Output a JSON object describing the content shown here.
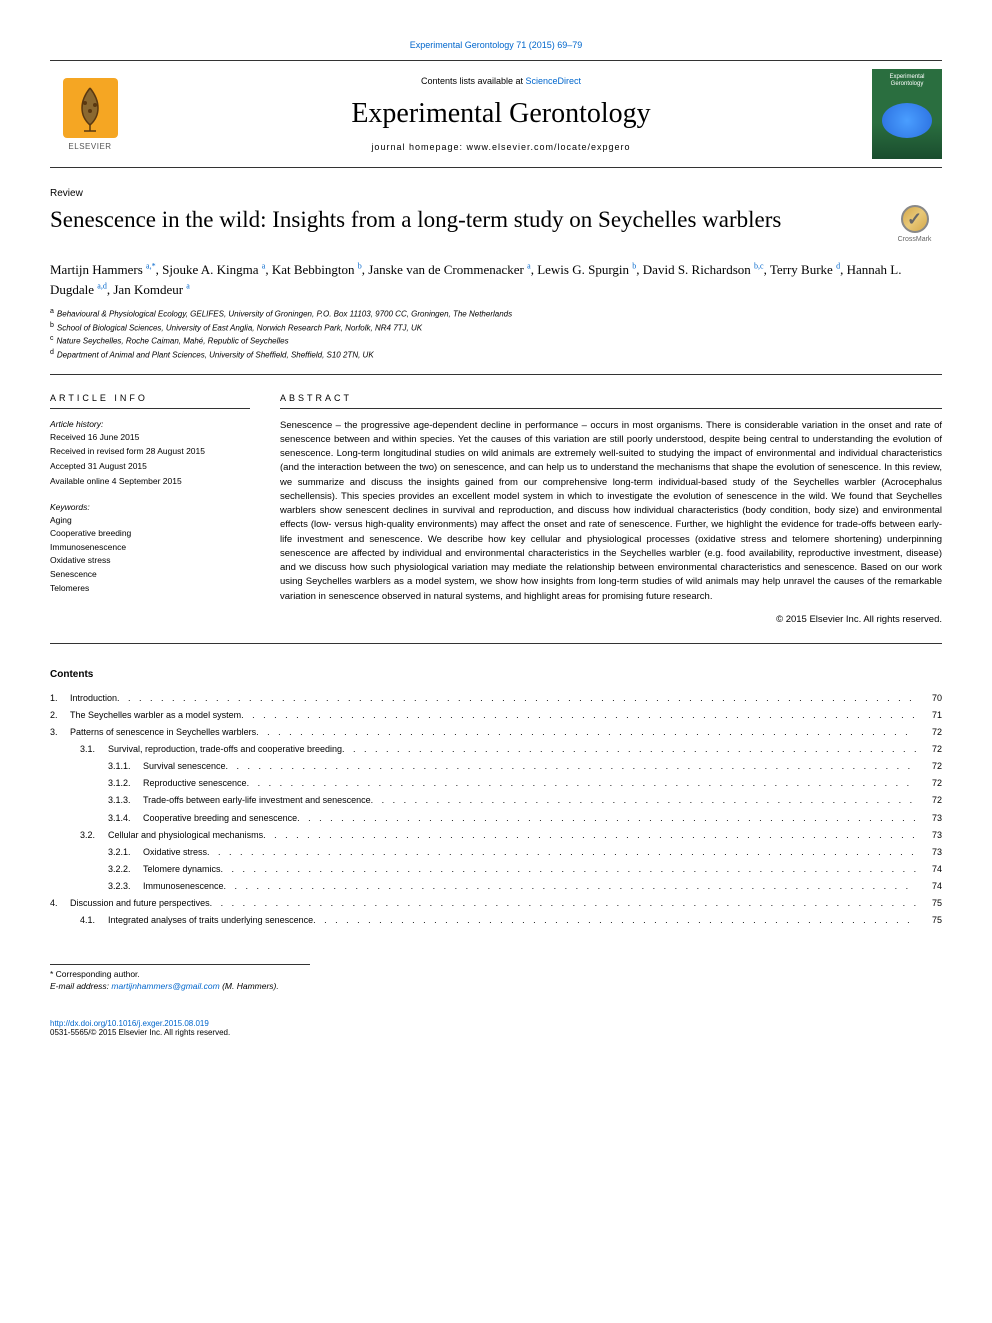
{
  "header": {
    "top_link": "Experimental Gerontology 71 (2015) 69–79",
    "contents_line_pre": "Contents lists available at ",
    "contents_line_link": "ScienceDirect",
    "journal_name": "Experimental Gerontology",
    "homepage_label": "journal homepage: www.elsevier.com/locate/expgero",
    "elsevier": "ELSEVIER",
    "cover_title": "Experimental Gerontology"
  },
  "article": {
    "type": "Review",
    "title": "Senescence in the wild: Insights from a long-term study on Seychelles warblers",
    "crossmark": "CrossMark"
  },
  "authors": {
    "a1": {
      "name": "Martijn Hammers ",
      "sup": "a,*"
    },
    "a2": {
      "name": ", Sjouke A. Kingma ",
      "sup": "a"
    },
    "a3": {
      "name": ", Kat Bebbington ",
      "sup": "b"
    },
    "a4": {
      "name": ", Janske van de Crommenacker ",
      "sup": "a"
    },
    "a5": {
      "name": ", Lewis G. Spurgin ",
      "sup": "b"
    },
    "a6": {
      "name": ", David S. Richardson ",
      "sup": "b,c"
    },
    "a7": {
      "name": ", Terry Burke ",
      "sup": "d"
    },
    "a8": {
      "name": ", Hannah L. Dugdale ",
      "sup": "a,d"
    },
    "a9": {
      "name": ", Jan Komdeur ",
      "sup": "a"
    }
  },
  "affiliations": {
    "a": "Behavioural & Physiological Ecology, GELIFES, University of Groningen, P.O. Box 11103, 9700 CC, Groningen, The Netherlands",
    "b": "School of Biological Sciences, University of East Anglia, Norwich Research Park, Norfolk, NR4 7TJ, UK",
    "c": "Nature Seychelles, Roche Caiman, Mahé, Republic of Seychelles",
    "d": "Department of Animal and Plant Sciences, University of Sheffield, Sheffield, S10 2TN, UK"
  },
  "info": {
    "heading": "article info",
    "history_label": "Article history:",
    "received": "Received 16 June 2015",
    "revised": "Received in revised form 28 August 2015",
    "accepted": "Accepted 31 August 2015",
    "online": "Available online 4 September 2015",
    "keywords_label": "Keywords:",
    "keywords": [
      "Aging",
      "Cooperative breeding",
      "Immunosenescence",
      "Oxidative stress",
      "Senescence",
      "Telomeres"
    ]
  },
  "abstract": {
    "heading": "abstract",
    "text": "Senescence – the progressive age-dependent decline in performance – occurs in most organisms. There is considerable variation in the onset and rate of senescence between and within species. Yet the causes of this variation are still poorly understood, despite being central to understanding the evolution of senescence. Long-term longitudinal studies on wild animals are extremely well-suited to studying the impact of environmental and individual characteristics (and the interaction between the two) on senescence, and can help us to understand the mechanisms that shape the evolution of senescence. In this review, we summarize and discuss the insights gained from our comprehensive long-term individual-based study of the Seychelles warbler (Acrocephalus sechellensis). This species provides an excellent model system in which to investigate the evolution of senescence in the wild. We found that Seychelles warblers show senescent declines in survival and reproduction, and discuss how individual characteristics (body condition, body size) and environmental effects (low- versus high-quality environments) may affect the onset and rate of senescence. Further, we highlight the evidence for trade-offs between early-life investment and senescence. We describe how key cellular and physiological processes (oxidative stress and telomere shortening) underpinning senescence are affected by individual and environmental characteristics in the Seychelles warbler (e.g. food availability, reproductive investment, disease) and we discuss how such physiological variation may mediate the relationship between environmental characteristics and senescence. Based on our work using Seychelles warblers as a model system, we show how insights from long-term studies of wild animals may help unravel the causes of the remarkable variation in senescence observed in natural systems, and highlight areas for promising future research.",
    "copyright": "© 2015 Elsevier Inc. All rights reserved."
  },
  "contents_heading": "Contents",
  "toc": [
    {
      "num": "1.",
      "label": "Introduction",
      "page": "70",
      "level": 0
    },
    {
      "num": "2.",
      "label": "The Seychelles warbler as a model system",
      "page": "71",
      "level": 0
    },
    {
      "num": "3.",
      "label": "Patterns of senescence in Seychelles warblers",
      "page": "72",
      "level": 0
    },
    {
      "num": "3.1.",
      "label": "Survival, reproduction, trade-offs and cooperative breeding",
      "page": "72",
      "level": 1
    },
    {
      "num": "3.1.1.",
      "label": "Survival senescence",
      "page": "72",
      "level": 2
    },
    {
      "num": "3.1.2.",
      "label": "Reproductive senescence",
      "page": "72",
      "level": 2
    },
    {
      "num": "3.1.3.",
      "label": "Trade-offs between early-life investment and senescence",
      "page": "72",
      "level": 2
    },
    {
      "num": "3.1.4.",
      "label": "Cooperative breeding and senescence",
      "page": "73",
      "level": 2
    },
    {
      "num": "3.2.",
      "label": "Cellular and physiological mechanisms",
      "page": "73",
      "level": 1
    },
    {
      "num": "3.2.1.",
      "label": "Oxidative stress",
      "page": "73",
      "level": 2
    },
    {
      "num": "3.2.2.",
      "label": "Telomere dynamics",
      "page": "74",
      "level": 2
    },
    {
      "num": "3.2.3.",
      "label": "Immunosenescence",
      "page": "74",
      "level": 2
    },
    {
      "num": "4.",
      "label": "Discussion and future perspectives",
      "page": "75",
      "level": 0
    },
    {
      "num": "4.1.",
      "label": "Integrated analyses of traits underlying senescence",
      "page": "75",
      "level": 1
    }
  ],
  "corr": {
    "star": "*  Corresponding author.",
    "email_label": "E-mail address: ",
    "email": "martijnhammers@gmail.com",
    "email_suffix": " (M. Hammers)."
  },
  "footer": {
    "doi": "http://dx.doi.org/10.1016/j.exger.2015.08.019",
    "issn": "0531-5565/© 2015 Elsevier Inc. All rights reserved."
  },
  "colors": {
    "link": "#0066cc",
    "elsevier_orange": "#f5a623",
    "cover_green": "#2a6e3f"
  }
}
